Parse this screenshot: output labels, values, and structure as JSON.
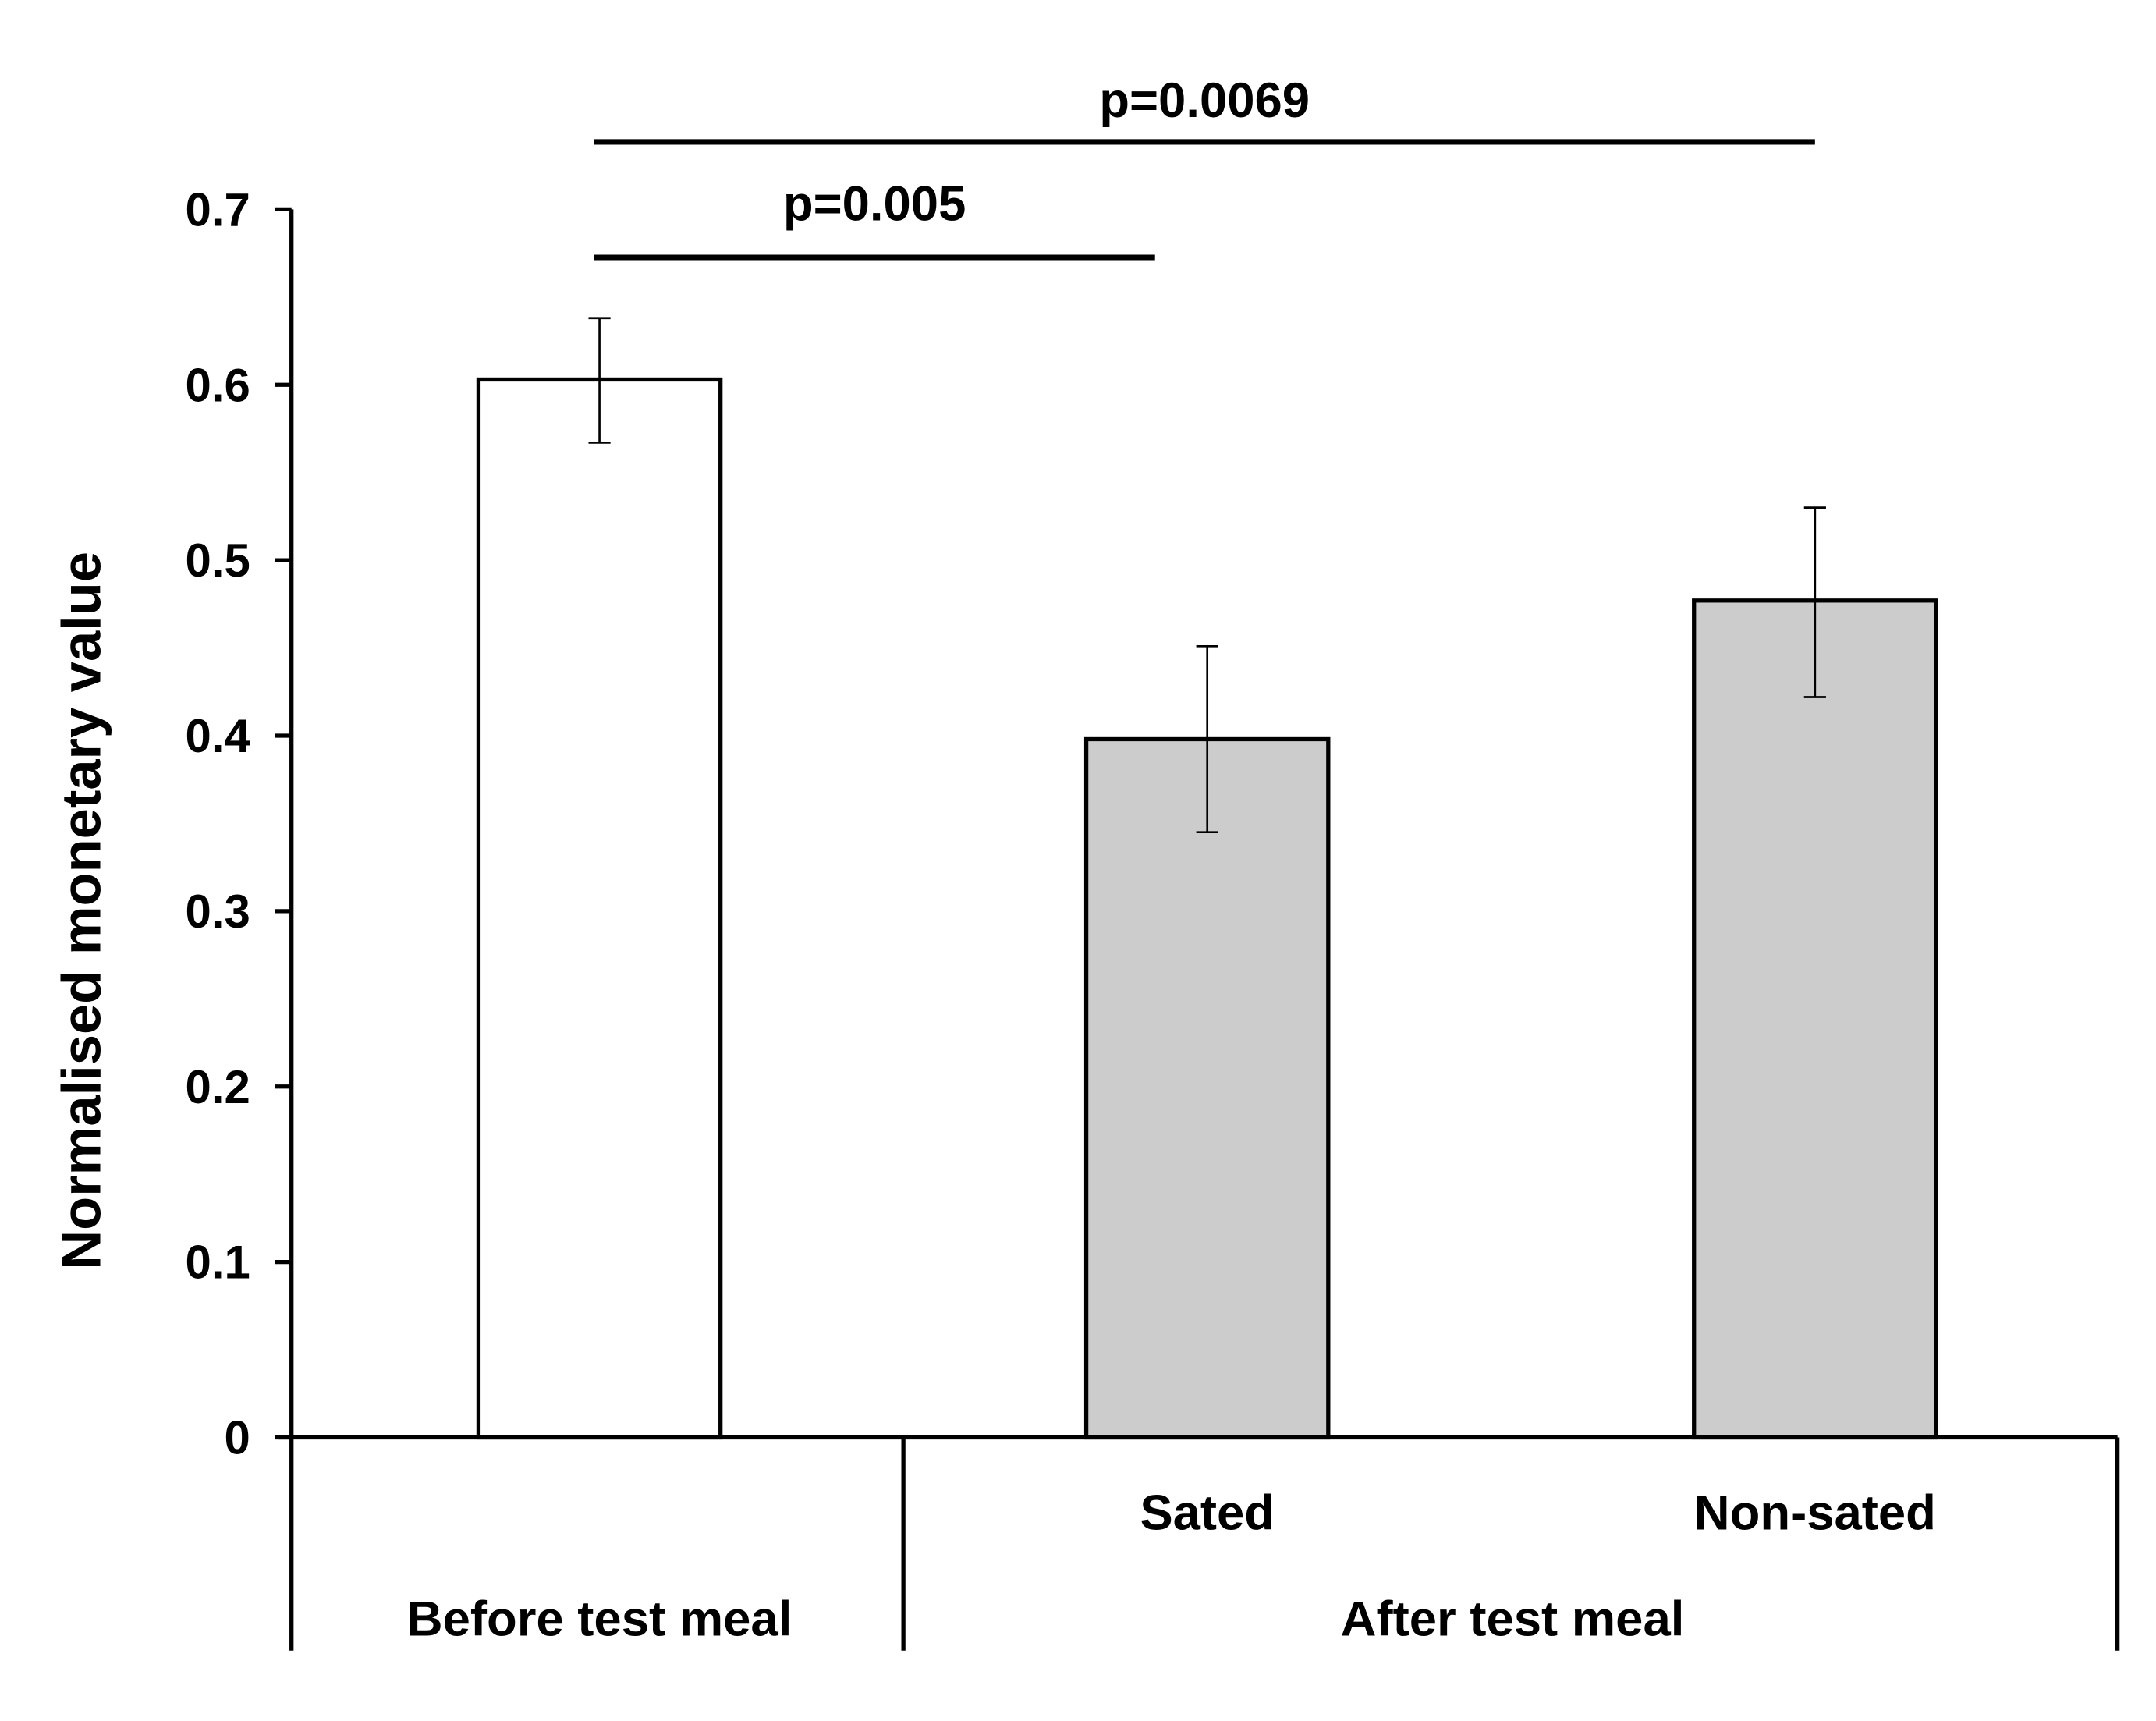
{
  "chart_data": {
    "type": "bar",
    "title": "",
    "ylabel": "Normalised monetary value",
    "xlabel": "",
    "ylim": [
      0,
      0.7
    ],
    "yticks": [
      "0",
      "0.1",
      "0.2",
      "0.3",
      "0.4",
      "0.5",
      "0.6",
      "0.7"
    ],
    "grid": false,
    "categories": [
      "",
      "Sated",
      "Non-sated"
    ],
    "groups": [
      {
        "label": "Before test meal",
        "categories": [
          0
        ]
      },
      {
        "label": "After test meal",
        "categories": [
          1,
          2
        ]
      }
    ],
    "values": [
      0.603,
      0.398,
      0.477
    ],
    "error_upper": [
      0.638,
      0.451,
      0.53
    ],
    "error_lower": [
      0.567,
      0.345,
      0.422
    ],
    "bar_colors": [
      "#ffffff",
      "#cccccc",
      "#cccccc"
    ],
    "annotations": [
      {
        "text": "p=0.005",
        "from": 0,
        "to": 1
      },
      {
        "text": "p=0.0069",
        "from": 0,
        "to": 2
      }
    ]
  }
}
